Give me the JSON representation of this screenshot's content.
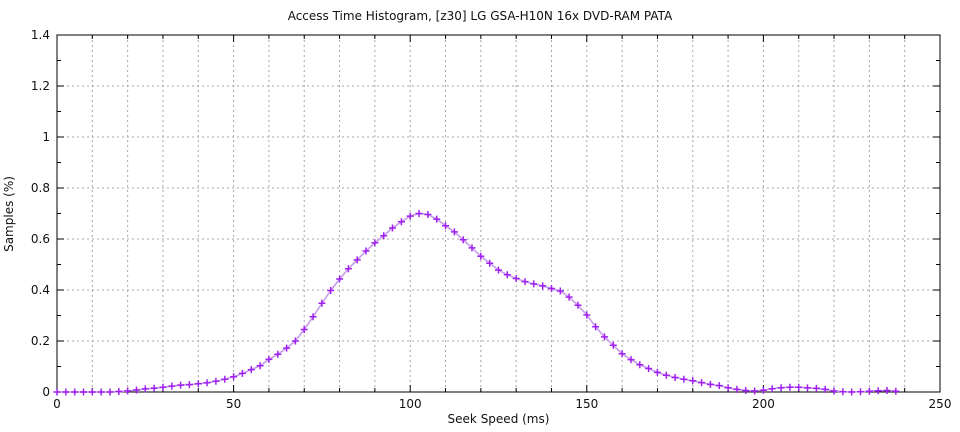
{
  "window": {
    "background": "#ffffff"
  },
  "chart_data": {
    "type": "line",
    "title": "Access Time Histogram, [z30] LG GSA-H10N 16x DVD-RAM PATA",
    "xlabel": "Seek Speed (ms)",
    "ylabel": "Samples (%)",
    "xlim": [
      0,
      250
    ],
    "ylim": [
      0,
      1.4
    ],
    "x_major_ticks": [
      0,
      50,
      100,
      150,
      200,
      250
    ],
    "x_tick_labels": [
      "0",
      "50",
      "100",
      "150",
      "200",
      "250"
    ],
    "x_minor_step": 10,
    "y_major_ticks": [
      0,
      0.2,
      0.4,
      0.6,
      0.8,
      1,
      1.2,
      1.4
    ],
    "y_tick_labels": [
      "0",
      "0.2",
      "0.4",
      "0.6",
      "0.8",
      "1",
      "1.2",
      "1.4"
    ],
    "y_minor_step": 0.1,
    "grid": {
      "vertical_step": 10,
      "horizontal_step": 0.2,
      "style": "dashed",
      "color": "#a6a6a6"
    },
    "legend": "none",
    "frame_color": "#000000",
    "series": [
      {
        "name": "access-time-histogram",
        "marker": "plus",
        "line_color": "#c9a1ea",
        "marker_color": "#a020f0",
        "points": [
          [
            0,
            0
          ],
          [
            2.5,
            0
          ],
          [
            5,
            0
          ],
          [
            7.5,
            0
          ],
          [
            10,
            0
          ],
          [
            12.5,
            0
          ],
          [
            15,
            0
          ],
          [
            17.5,
            0.002
          ],
          [
            20,
            0.004
          ],
          [
            22.5,
            0.008
          ],
          [
            25,
            0.012
          ],
          [
            27.5,
            0.015
          ],
          [
            30,
            0.019
          ],
          [
            32.5,
            0.023
          ],
          [
            35,
            0.027
          ],
          [
            37.5,
            0.029
          ],
          [
            40,
            0.032
          ],
          [
            42.5,
            0.036
          ],
          [
            45,
            0.042
          ],
          [
            47.5,
            0.05
          ],
          [
            50,
            0.06
          ],
          [
            52.5,
            0.073
          ],
          [
            55,
            0.088
          ],
          [
            57.5,
            0.103
          ],
          [
            60,
            0.128
          ],
          [
            62.5,
            0.148
          ],
          [
            65,
            0.172
          ],
          [
            67.5,
            0.2
          ],
          [
            70,
            0.245
          ],
          [
            72.5,
            0.295
          ],
          [
            75,
            0.348
          ],
          [
            77.5,
            0.398
          ],
          [
            80,
            0.443
          ],
          [
            82.5,
            0.483
          ],
          [
            85,
            0.518
          ],
          [
            87.5,
            0.553
          ],
          [
            90,
            0.585
          ],
          [
            92.5,
            0.613
          ],
          [
            95,
            0.643
          ],
          [
            97.5,
            0.668
          ],
          [
            100,
            0.69
          ],
          [
            102.5,
            0.7
          ],
          [
            105,
            0.696
          ],
          [
            107.5,
            0.678
          ],
          [
            110,
            0.652
          ],
          [
            112.5,
            0.628
          ],
          [
            115,
            0.597
          ],
          [
            117.5,
            0.565
          ],
          [
            120,
            0.532
          ],
          [
            122.5,
            0.505
          ],
          [
            125,
            0.478
          ],
          [
            127.5,
            0.46
          ],
          [
            130,
            0.445
          ],
          [
            132.5,
            0.433
          ],
          [
            135,
            0.424
          ],
          [
            137.5,
            0.416
          ],
          [
            140,
            0.406
          ],
          [
            142.5,
            0.396
          ],
          [
            145,
            0.372
          ],
          [
            147.5,
            0.34
          ],
          [
            150,
            0.302
          ],
          [
            152.5,
            0.256
          ],
          [
            155,
            0.216
          ],
          [
            157.5,
            0.183
          ],
          [
            160,
            0.15
          ],
          [
            162.5,
            0.127
          ],
          [
            165,
            0.107
          ],
          [
            167.5,
            0.092
          ],
          [
            170,
            0.077
          ],
          [
            172.5,
            0.066
          ],
          [
            175,
            0.057
          ],
          [
            177.5,
            0.05
          ],
          [
            180,
            0.044
          ],
          [
            182.5,
            0.037
          ],
          [
            185,
            0.03
          ],
          [
            187.5,
            0.025
          ],
          [
            190,
            0.017
          ],
          [
            192.5,
            0.01
          ],
          [
            195,
            0.006
          ],
          [
            197.5,
            0.004
          ],
          [
            200,
            0.007
          ],
          [
            202.5,
            0.013
          ],
          [
            205,
            0.017
          ],
          [
            207.5,
            0.019
          ],
          [
            210,
            0.019
          ],
          [
            212.5,
            0.016
          ],
          [
            215,
            0.014
          ],
          [
            217.5,
            0.01
          ],
          [
            220,
            0.004
          ],
          [
            222.5,
            0.001
          ],
          [
            225,
            0
          ],
          [
            227.5,
            0.001
          ],
          [
            230,
            0.003
          ],
          [
            232.5,
            0.005
          ],
          [
            235,
            0.006
          ],
          [
            237.5,
            0.003
          ]
        ]
      }
    ]
  }
}
